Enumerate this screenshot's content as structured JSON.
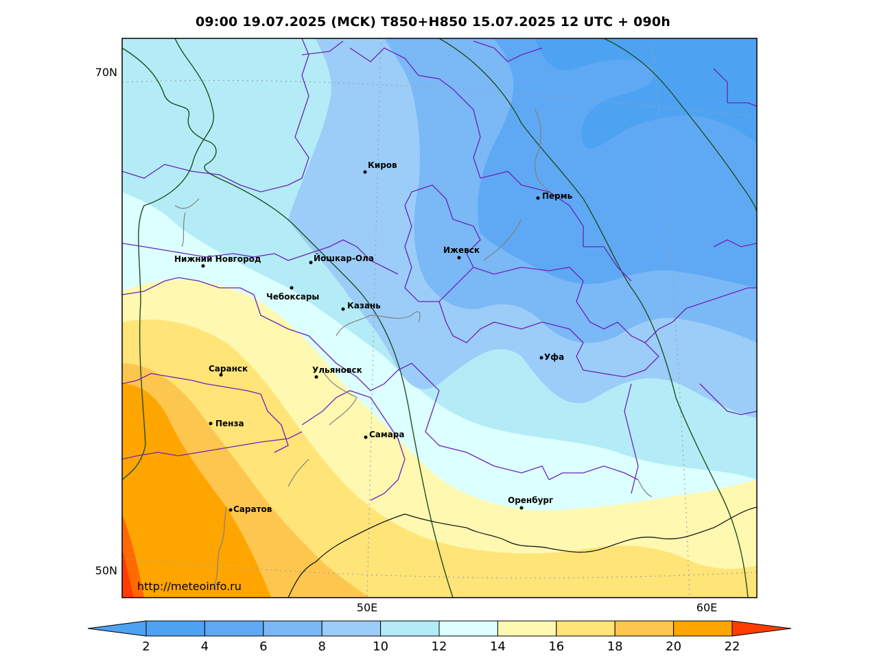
{
  "title": "09:00 19.07.2025 (MCK) T850+H850 15.07.2025 12 UTC + 090h",
  "watermark": "http://meteoinfo.ru",
  "axes": {
    "lat_labels": [
      "70N",
      "50N"
    ],
    "lon_labels": [
      "50E",
      "60E"
    ]
  },
  "cities": [
    {
      "name": "Киров"
    },
    {
      "name": "Пермь"
    },
    {
      "name": "Нижний Новгород"
    },
    {
      "name": "Йошкар-Ола"
    },
    {
      "name": "Ижевск"
    },
    {
      "name": "Чебоксары"
    },
    {
      "name": "Казань"
    },
    {
      "name": "Уфа"
    },
    {
      "name": "Саранск"
    },
    {
      "name": "Ульяновск"
    },
    {
      "name": "Пенза"
    },
    {
      "name": "Самара"
    },
    {
      "name": "Оренбург"
    },
    {
      "name": "Саратов"
    }
  ],
  "colorbar": {
    "ticks": [
      "2",
      "4",
      "6",
      "8",
      "10",
      "12",
      "14",
      "16",
      "18",
      "20",
      "22"
    ],
    "colors": [
      "#4da3f2",
      "#5fa9f4",
      "#7ab8f6",
      "#9bcdf8",
      "#b3ecf6",
      "#ddffff",
      "#fff8b0",
      "#ffe478",
      "#fdc64e",
      "#ffa500",
      "#ff6a00",
      "#ff3d00"
    ]
  }
}
